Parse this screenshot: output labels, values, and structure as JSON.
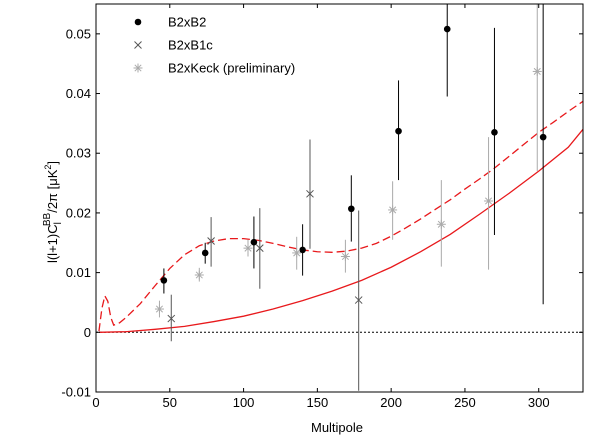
{
  "chart_data": {
    "type": "scatter",
    "xlabel": "Multipole",
    "ylabel_parts": [
      "l(l+1)C",
      "l",
      "BB",
      "/2π [μK",
      "2",
      "]"
    ],
    "xlim": [
      0,
      330
    ],
    "ylim": [
      -0.01,
      0.055
    ],
    "xticks": [
      0,
      50,
      100,
      150,
      200,
      250,
      300
    ],
    "yticks": [
      -0.01,
      0,
      0.01,
      0.02,
      0.03,
      0.04,
      0.05
    ],
    "ytick_labels": [
      "-0.01",
      "0",
      "0.01",
      "0.02",
      "0.03",
      "0.04",
      "0.05"
    ],
    "legend_position": "top-left",
    "zero_line": true,
    "series": [
      {
        "name": "B2xB2",
        "marker": "dot",
        "color": "#000000",
        "points": [
          {
            "x": 46,
            "y": 0.0087,
            "lo": 0.0065,
            "hi": 0.0107
          },
          {
            "x": 74,
            "y": 0.0133,
            "lo": 0.0115,
            "hi": 0.015
          },
          {
            "x": 107,
            "y": 0.0151,
            "lo": 0.0107,
            "hi": 0.0194
          },
          {
            "x": 140,
            "y": 0.0138,
            "lo": 0.0095,
            "hi": 0.0181
          },
          {
            "x": 173,
            "y": 0.0207,
            "lo": 0.0152,
            "hi": 0.0263
          },
          {
            "x": 205,
            "y": 0.0337,
            "lo": 0.0255,
            "hi": 0.0422
          },
          {
            "x": 238,
            "y": 0.0508,
            "lo": 0.0395,
            "hi": 0.056
          },
          {
            "x": 270,
            "y": 0.0335,
            "lo": 0.0163,
            "hi": 0.051
          },
          {
            "x": 303,
            "y": 0.0327,
            "lo": 0.0047,
            "hi": 0.056
          }
        ]
      },
      {
        "name": "B2xB1c",
        "marker": "x",
        "color": "#555555",
        "points": [
          {
            "x": 51,
            "y": 0.0023,
            "lo": -0.0015,
            "hi": 0.0063
          },
          {
            "x": 78,
            "y": 0.0153,
            "lo": 0.011,
            "hi": 0.0193
          },
          {
            "x": 111,
            "y": 0.0141,
            "lo": 0.0073,
            "hi": 0.0208
          },
          {
            "x": 145,
            "y": 0.0232,
            "lo": 0.014,
            "hi": 0.0323
          },
          {
            "x": 178,
            "y": 0.0054,
            "lo": -0.0098,
            "hi": 0.0204
          }
        ]
      },
      {
        "name": "B2xKeck (preliminary)",
        "marker": "asterisk",
        "color": "#aaaaaa",
        "points": [
          {
            "x": 43,
            "y": 0.0039,
            "lo": 0.0025,
            "hi": 0.0053
          },
          {
            "x": 70,
            "y": 0.0096,
            "lo": 0.0085,
            "hi": 0.0108
          },
          {
            "x": 103,
            "y": 0.0141,
            "lo": 0.0127,
            "hi": 0.0155
          },
          {
            "x": 136,
            "y": 0.0133,
            "lo": 0.0105,
            "hi": 0.016
          },
          {
            "x": 169,
            "y": 0.0127,
            "lo": 0.01,
            "hi": 0.0155
          },
          {
            "x": 201,
            "y": 0.0205,
            "lo": 0.0155,
            "hi": 0.0253
          },
          {
            "x": 234,
            "y": 0.0181,
            "lo": 0.011,
            "hi": 0.0255
          },
          {
            "x": 266,
            "y": 0.022,
            "lo": 0.0105,
            "hi": 0.0327
          },
          {
            "x": 299,
            "y": 0.0437,
            "lo": 0.027,
            "hi": 0.056
          }
        ]
      }
    ],
    "curves": [
      {
        "style": "dashed",
        "color": "#e8191c",
        "points": [
          [
            2,
            0.0002
          ],
          [
            4,
            0.004
          ],
          [
            6,
            0.0061
          ],
          [
            8,
            0.0052
          ],
          [
            10,
            0.0025
          ],
          [
            12,
            0.0012
          ],
          [
            16,
            0.0016
          ],
          [
            20,
            0.0024
          ],
          [
            30,
            0.0048
          ],
          [
            40,
            0.0078
          ],
          [
            50,
            0.0107
          ],
          [
            60,
            0.013
          ],
          [
            70,
            0.0145
          ],
          [
            80,
            0.0153
          ],
          [
            90,
            0.0157
          ],
          [
            100,
            0.0157
          ],
          [
            110,
            0.0154
          ],
          [
            120,
            0.0149
          ],
          [
            130,
            0.0143
          ],
          [
            140,
            0.0138
          ],
          [
            150,
            0.0135
          ],
          [
            160,
            0.0134
          ],
          [
            170,
            0.0136
          ],
          [
            180,
            0.0141
          ],
          [
            190,
            0.0149
          ],
          [
            200,
            0.0161
          ],
          [
            210,
            0.0175
          ],
          [
            220,
            0.019
          ],
          [
            230,
            0.0206
          ],
          [
            240,
            0.0222
          ],
          [
            250,
            0.024
          ],
          [
            260,
            0.0257
          ],
          [
            270,
            0.0275
          ],
          [
            280,
            0.0295
          ],
          [
            290,
            0.0315
          ],
          [
            300,
            0.0335
          ],
          [
            310,
            0.0352
          ],
          [
            320,
            0.037
          ],
          [
            330,
            0.0387
          ]
        ]
      },
      {
        "style": "solid",
        "color": "#e8191c",
        "points": [
          [
            2,
            0.0
          ],
          [
            20,
            0.0001
          ],
          [
            40,
            0.0005
          ],
          [
            60,
            0.001
          ],
          [
            80,
            0.0018
          ],
          [
            100,
            0.0027
          ],
          [
            120,
            0.0039
          ],
          [
            140,
            0.0053
          ],
          [
            160,
            0.0069
          ],
          [
            180,
            0.0087
          ],
          [
            200,
            0.0109
          ],
          [
            220,
            0.0135
          ],
          [
            240,
            0.0164
          ],
          [
            260,
            0.0198
          ],
          [
            280,
            0.0233
          ],
          [
            300,
            0.027
          ],
          [
            320,
            0.031
          ],
          [
            330,
            0.034
          ]
        ]
      }
    ]
  }
}
